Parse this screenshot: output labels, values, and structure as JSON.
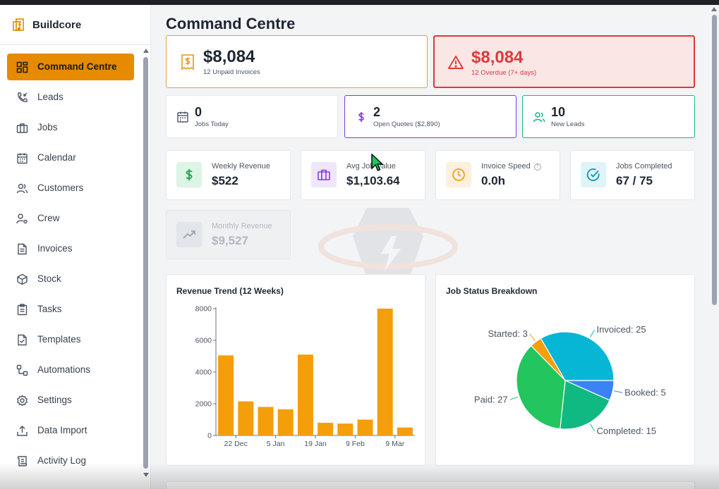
{
  "app": {
    "name": "Buildcore"
  },
  "sidebar": {
    "items": [
      {
        "label": "Command Centre",
        "icon": "dashboard-icon",
        "active": true
      },
      {
        "label": "Leads",
        "icon": "phone-incoming-icon"
      },
      {
        "label": "Jobs",
        "icon": "briefcase-icon"
      },
      {
        "label": "Calendar",
        "icon": "calendar-icon"
      },
      {
        "label": "Customers",
        "icon": "users-icon"
      },
      {
        "label": "Crew",
        "icon": "user-cog-icon"
      },
      {
        "label": "Invoices",
        "icon": "file-text-icon"
      },
      {
        "label": "Stock",
        "icon": "package-icon"
      },
      {
        "label": "Tasks",
        "icon": "clipboard-icon"
      },
      {
        "label": "Templates",
        "icon": "file-check-icon"
      },
      {
        "label": "Automations",
        "icon": "workflow-icon"
      },
      {
        "label": "Settings",
        "icon": "gear-icon"
      },
      {
        "label": "Data Import",
        "icon": "upload-icon"
      },
      {
        "label": "Activity Log",
        "icon": "scroll-icon"
      }
    ]
  },
  "page": {
    "title": "Command Centre"
  },
  "summary": {
    "unpaid": {
      "value": "$8,084",
      "label": "12 Unpaid Invoices",
      "color": "#e2a33a"
    },
    "overdue": {
      "value": "$8,084",
      "label": "12 Overdue (7+ days)",
      "color": "#dc3a3a"
    }
  },
  "mid_stats": [
    {
      "value": "0",
      "label": "Jobs Today",
      "icon": "calendar-icon",
      "color": "#d1d5db"
    },
    {
      "value": "2",
      "label": "Open Quotes ($2,890)",
      "icon": "dollar-icon",
      "color": "#7c3aed"
    },
    {
      "value": "10",
      "label": "New Leads",
      "icon": "users-icon",
      "color": "#10b981"
    }
  ],
  "kpis": [
    {
      "label": "Weekly Revenue",
      "value": "$522",
      "icon": "dollar-icon",
      "color": "#16a34a"
    },
    {
      "label": "Avg Job Value",
      "value": "$1,103.64",
      "icon": "briefcase-icon",
      "color": "#7c3aed"
    },
    {
      "label": "Invoice Speed",
      "value": "0.0h",
      "icon": "clock-icon",
      "color": "#f59e0b"
    },
    {
      "label": "Jobs Completed",
      "value": "67 / 75",
      "icon": "check-circle-icon",
      "color": "#0891b2"
    },
    {
      "label": "Monthly Revenue",
      "value": "$9,527",
      "icon": "trending-up-icon",
      "color": "#9ca3af"
    }
  ],
  "chart_data": [
    {
      "type": "bar",
      "title": "Revenue Trend (12 Weeks)",
      "categories": [
        "",
        "22 Dec",
        "",
        "5 Jan",
        "",
        "19 Jan",
        "",
        "9 Feb",
        "",
        "9 Mar"
      ],
      "values": [
        5050,
        2150,
        1800,
        1650,
        5100,
        800,
        750,
        1000,
        8000,
        500
      ],
      "ylim": [
        0,
        8000
      ],
      "yticks": [
        0,
        2000,
        4000,
        6000,
        8000
      ],
      "color": "#f59e0b"
    },
    {
      "type": "pie",
      "title": "Job Status Breakdown",
      "slices": [
        {
          "label": "Booked",
          "value": 5,
          "color": "#3b82f6"
        },
        {
          "label": "Completed",
          "value": 15,
          "color": "#10b981"
        },
        {
          "label": "Paid",
          "value": 27,
          "color": "#22c55e"
        },
        {
          "label": "Started",
          "value": 3,
          "color": "#f59e0b"
        },
        {
          "label": "Invoiced",
          "value": 25,
          "color": "#06b6d4"
        }
      ]
    }
  ]
}
